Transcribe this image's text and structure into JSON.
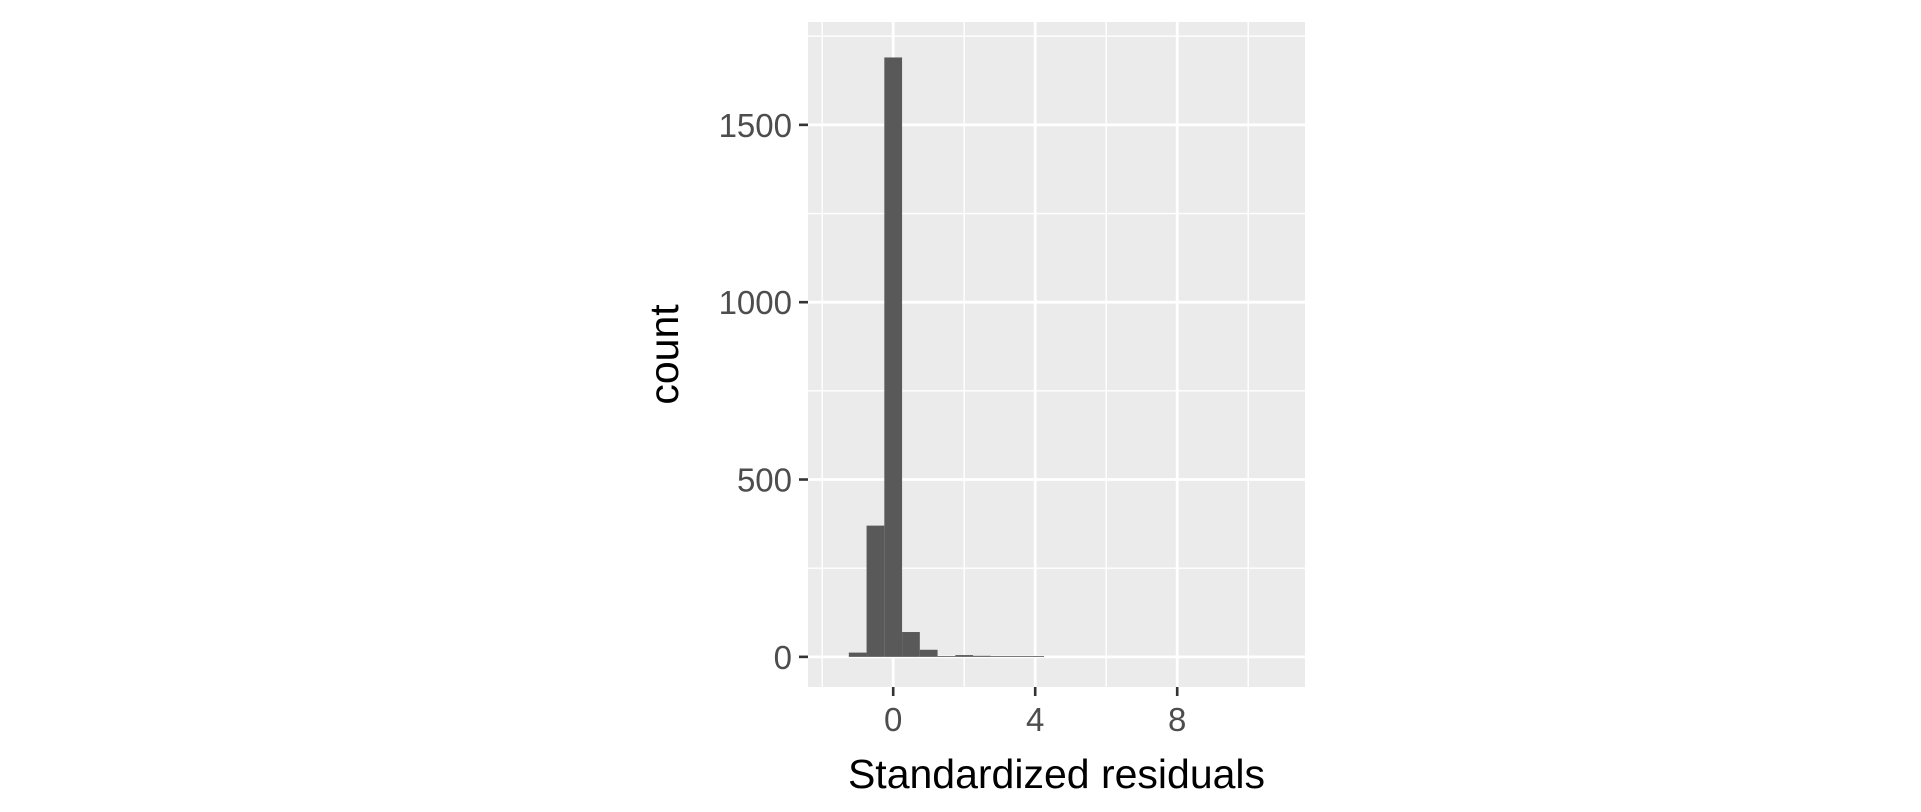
{
  "chart_data": {
    "type": "bar",
    "title": "",
    "xlabel": "Standardized residuals",
    "ylabel": "count",
    "xlim": [
      -2.4,
      11.6
    ],
    "ylim": [
      -85,
      1790
    ],
    "x_ticks": [
      0,
      4,
      8
    ],
    "y_ticks": [
      0,
      500,
      1000,
      1500
    ],
    "grid": true,
    "bin_width": 0.5,
    "bins": [
      {
        "x0": -1.25,
        "x1": -0.75,
        "count": 12
      },
      {
        "x0": -0.75,
        "x1": -0.25,
        "count": 370
      },
      {
        "x0": -0.25,
        "x1": 0.25,
        "count": 1690
      },
      {
        "x0": 0.25,
        "x1": 0.75,
        "count": 70
      },
      {
        "x0": 0.75,
        "x1": 1.25,
        "count": 20
      },
      {
        "x0": 1.25,
        "x1": 1.75,
        "count": 2
      },
      {
        "x0": 1.75,
        "x1": 2.25,
        "count": 5
      },
      {
        "x0": 2.25,
        "x1": 2.75,
        "count": 3
      },
      {
        "x0": 2.75,
        "x1": 3.25,
        "count": 2
      },
      {
        "x0": 3.25,
        "x1": 3.75,
        "count": 2
      },
      {
        "x0": 3.75,
        "x1": 4.25,
        "count": 2
      }
    ],
    "colors": {
      "bar": "#595959",
      "panel": "#ebebeb",
      "grid": "#ffffff",
      "tick_text": "#4d4d4d",
      "axis_title": "#000000"
    }
  }
}
